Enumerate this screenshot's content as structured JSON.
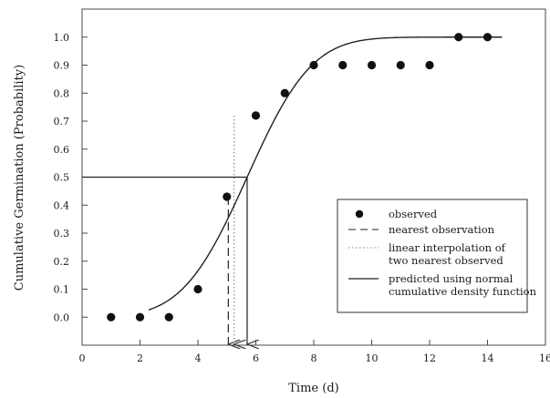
{
  "chart_data": {
    "type": "scatter",
    "xlabel": "Time (d)",
    "ylabel": "Cumulative Germination (Probability)",
    "xlim": [
      0,
      16
    ],
    "ylim": [
      -0.1,
      1.1
    ],
    "x_ticks": [
      0,
      2,
      4,
      6,
      8,
      10,
      12,
      14,
      16
    ],
    "y_ticks": [
      0.0,
      0.1,
      0.2,
      0.3,
      0.4,
      0.5,
      0.6,
      0.7,
      0.8,
      0.9,
      1.0
    ],
    "grid": false,
    "legend_position": "right",
    "observed": {
      "x": [
        1,
        2,
        3,
        4,
        5,
        6,
        7,
        8,
        9,
        10,
        11,
        12,
        13,
        14
      ],
      "y": [
        0.0,
        0.0,
        0.0,
        0.1,
        0.43,
        0.72,
        0.8,
        0.9,
        0.9,
        0.9,
        0.9,
        0.9,
        1.0,
        1.0
      ]
    },
    "predicted_curve": {
      "x_range": [
        2.3,
        14.5
      ],
      "mean": 5.7,
      "sd": 1.75
    },
    "nearest_observation_x": 5.05,
    "linear_interpolation_x": 5.25,
    "predicted_median_x": 5.7,
    "reference_level": 0.5,
    "legend": [
      {
        "key": "observed",
        "marker": "dot",
        "lines": [
          "observed"
        ]
      },
      {
        "key": "nearest",
        "marker": "dashed",
        "lines": [
          "nearest observation"
        ]
      },
      {
        "key": "interp",
        "marker": "dotted",
        "lines": [
          "linear interpolation of",
          "two nearest observed"
        ]
      },
      {
        "key": "predicted",
        "marker": "solid",
        "lines": [
          "predicted using normal",
          "cumulative density function"
        ]
      }
    ]
  }
}
